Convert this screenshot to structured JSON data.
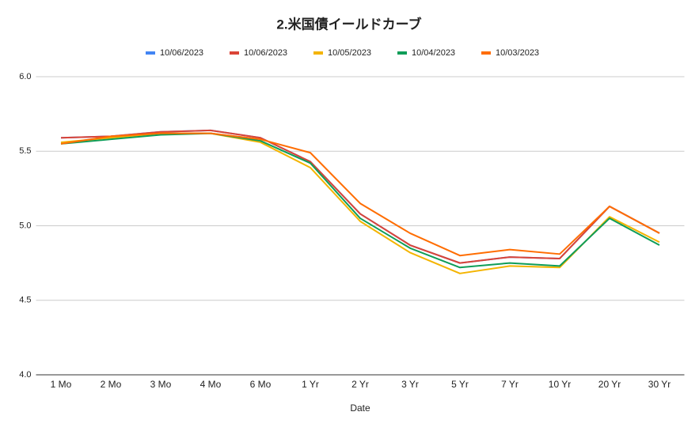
{
  "chart_data": {
    "type": "line",
    "title": "2.米国債イールドカーブ",
    "x_label": "Date",
    "categories": [
      "1 Mo",
      "2 Mo",
      "3 Mo",
      "4 Mo",
      "6 Mo",
      "1 Yr",
      "2 Yr",
      "3 Yr",
      "5 Yr",
      "7 Yr",
      "10 Yr",
      "20 Yr",
      "30 Yr"
    ],
    "series": [
      {
        "name": "10/06/2023",
        "color": "#4285f4",
        "values": [
          5.59,
          5.6,
          5.63,
          5.64,
          5.59,
          5.43,
          5.08,
          4.87,
          4.75,
          4.79,
          4.78,
          5.13,
          4.95
        ]
      },
      {
        "name": "10/06/2023",
        "color": "#db4437",
        "values": [
          5.59,
          5.6,
          5.63,
          5.64,
          5.59,
          5.43,
          5.08,
          4.87,
          4.75,
          4.79,
          4.78,
          5.13,
          4.95
        ]
      },
      {
        "name": "10/05/2023",
        "color": "#f4b400",
        "values": [
          5.56,
          5.59,
          5.62,
          5.62,
          5.56,
          5.39,
          5.03,
          4.82,
          4.68,
          4.73,
          4.72,
          5.06,
          4.89
        ]
      },
      {
        "name": "10/04/2023",
        "color": "#0f9d58",
        "values": [
          5.55,
          5.58,
          5.61,
          5.62,
          5.57,
          5.42,
          5.05,
          4.85,
          4.72,
          4.75,
          4.73,
          5.05,
          4.87
        ]
      },
      {
        "name": "10/03/2023",
        "color": "#ff6d01",
        "values": [
          5.55,
          5.6,
          5.62,
          5.62,
          5.58,
          5.49,
          5.15,
          4.95,
          4.8,
          4.84,
          4.81,
          5.13,
          4.95
        ]
      }
    ],
    "ylim": [
      4,
      6
    ],
    "yticks": [
      {
        "value": 4,
        "label": "4.0"
      },
      4.5,
      {
        "value": 5,
        "label": "5.0"
      },
      5.5,
      {
        "value": 6,
        "label": "6.0"
      }
    ],
    "grid": true,
    "legend": "top"
  }
}
